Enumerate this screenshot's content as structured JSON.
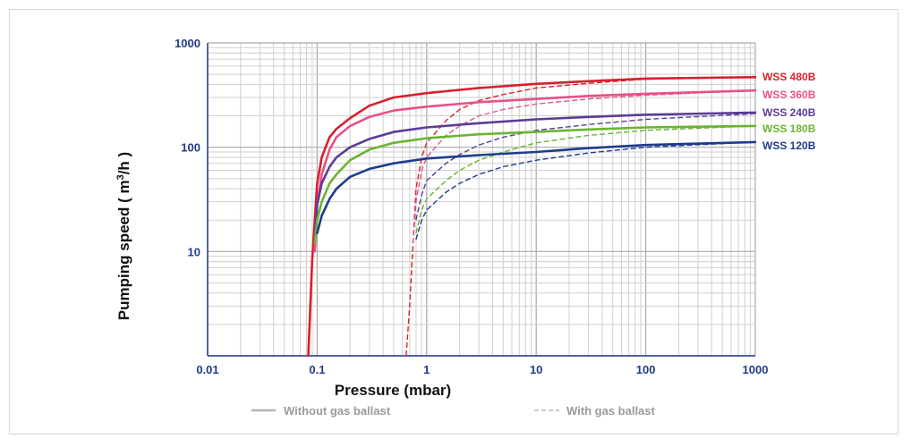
{
  "chart_data": {
    "type": "line",
    "xscale": "log",
    "yscale": "log",
    "xlim": [
      0.01,
      1000
    ],
    "ylim": [
      1,
      1000
    ],
    "xlabel": "Pressure (mbar)",
    "ylabel_main": "Pumping speed ( m",
    "ylabel_sup": "3",
    "ylabel_end": "/h )",
    "xticks": [
      "0.01",
      "0.1",
      "1",
      "10",
      "100",
      "1000"
    ],
    "yticks": [
      "10",
      "100",
      "1000"
    ],
    "grid": true,
    "legend": {
      "solid_label": "Without gas ballast",
      "dashed_label": "With gas ballast",
      "placement": "bottom"
    },
    "series": [
      {
        "name": "WSS 480B",
        "color": "#d8202c",
        "without_gas_ballast": [
          [
            0.083,
            1
          ],
          [
            0.09,
            8
          ],
          [
            0.095,
            20
          ],
          [
            0.1,
            45
          ],
          [
            0.11,
            80
          ],
          [
            0.13,
            125
          ],
          [
            0.15,
            150
          ],
          [
            0.2,
            190
          ],
          [
            0.3,
            250
          ],
          [
            0.5,
            300
          ],
          [
            1,
            330
          ],
          [
            3,
            370
          ],
          [
            10,
            405
          ],
          [
            30,
            430
          ],
          [
            100,
            455
          ],
          [
            1000,
            470
          ]
        ],
        "with_gas_ballast": [
          [
            0.65,
            1
          ],
          [
            0.7,
            3
          ],
          [
            0.75,
            12
          ],
          [
            0.8,
            40
          ],
          [
            0.9,
            80
          ],
          [
            1,
            110
          ],
          [
            1.5,
            180
          ],
          [
            2,
            230
          ],
          [
            3,
            280
          ],
          [
            5,
            320
          ],
          [
            10,
            370
          ],
          [
            30,
            410
          ],
          [
            100,
            450
          ],
          [
            1000,
            470
          ]
        ]
      },
      {
        "name": "WSS 360B",
        "color": "#e8508a",
        "without_gas_ballast": [
          [
            0.095,
            10
          ],
          [
            0.1,
            28
          ],
          [
            0.11,
            55
          ],
          [
            0.13,
            95
          ],
          [
            0.15,
            125
          ],
          [
            0.2,
            160
          ],
          [
            0.3,
            195
          ],
          [
            0.5,
            225
          ],
          [
            1,
            245
          ],
          [
            3,
            270
          ],
          [
            10,
            290
          ],
          [
            30,
            310
          ],
          [
            100,
            325
          ],
          [
            1000,
            350
          ]
        ],
        "with_gas_ballast": [
          [
            0.75,
            12
          ],
          [
            0.8,
            30
          ],
          [
            0.9,
            60
          ],
          [
            1,
            80
          ],
          [
            1.5,
            130
          ],
          [
            2,
            160
          ],
          [
            3,
            200
          ],
          [
            5,
            230
          ],
          [
            10,
            260
          ],
          [
            30,
            290
          ],
          [
            100,
            315
          ],
          [
            1000,
            350
          ]
        ]
      },
      {
        "name": "WSS 240B",
        "color": "#5a3c96",
        "without_gas_ballast": [
          [
            0.095,
            12
          ],
          [
            0.1,
            28
          ],
          [
            0.11,
            45
          ],
          [
            0.13,
            65
          ],
          [
            0.15,
            80
          ],
          [
            0.2,
            100
          ],
          [
            0.3,
            120
          ],
          [
            0.5,
            140
          ],
          [
            1,
            155
          ],
          [
            3,
            170
          ],
          [
            10,
            185
          ],
          [
            30,
            195
          ],
          [
            100,
            205
          ],
          [
            1000,
            215
          ]
        ],
        "with_gas_ballast": [
          [
            0.8,
            20
          ],
          [
            0.9,
            35
          ],
          [
            1,
            48
          ],
          [
            1.5,
            70
          ],
          [
            2,
            85
          ],
          [
            3,
            105
          ],
          [
            5,
            125
          ],
          [
            10,
            145
          ],
          [
            30,
            165
          ],
          [
            100,
            185
          ],
          [
            1000,
            210
          ]
        ]
      },
      {
        "name": "WSS 180B",
        "color": "#6ab432",
        "without_gas_ballast": [
          [
            0.095,
            12
          ],
          [
            0.1,
            20
          ],
          [
            0.11,
            30
          ],
          [
            0.13,
            45
          ],
          [
            0.15,
            55
          ],
          [
            0.2,
            75
          ],
          [
            0.3,
            95
          ],
          [
            0.5,
            110
          ],
          [
            1,
            122
          ],
          [
            3,
            133
          ],
          [
            10,
            140
          ],
          [
            30,
            148
          ],
          [
            100,
            155
          ],
          [
            1000,
            160
          ]
        ],
        "with_gas_ballast": [
          [
            0.8,
            15
          ],
          [
            0.9,
            25
          ],
          [
            1,
            32
          ],
          [
            1.5,
            48
          ],
          [
            2,
            60
          ],
          [
            3,
            75
          ],
          [
            5,
            90
          ],
          [
            10,
            110
          ],
          [
            30,
            130
          ],
          [
            100,
            145
          ],
          [
            1000,
            160
          ]
        ]
      },
      {
        "name": "WSS 120B",
        "color": "#1e3c8c",
        "without_gas_ballast": [
          [
            0.1,
            15
          ],
          [
            0.11,
            22
          ],
          [
            0.13,
            32
          ],
          [
            0.15,
            40
          ],
          [
            0.2,
            52
          ],
          [
            0.3,
            62
          ],
          [
            0.5,
            70
          ],
          [
            1,
            78
          ],
          [
            3,
            84
          ],
          [
            10,
            90
          ],
          [
            30,
            98
          ],
          [
            100,
            105
          ],
          [
            1000,
            112
          ]
        ],
        "with_gas_ballast": [
          [
            0.8,
            13
          ],
          [
            0.9,
            20
          ],
          [
            1,
            25
          ],
          [
            1.5,
            37
          ],
          [
            2,
            45
          ],
          [
            3,
            55
          ],
          [
            5,
            65
          ],
          [
            10,
            75
          ],
          [
            30,
            88
          ],
          [
            100,
            100
          ],
          [
            1000,
            112
          ]
        ]
      }
    ]
  },
  "colors": {
    "tick_text": "#1f3b8a",
    "axis": "#1f3b8a",
    "grid": "#cfcfcf",
    "legend_text": "#9a9a9a"
  }
}
